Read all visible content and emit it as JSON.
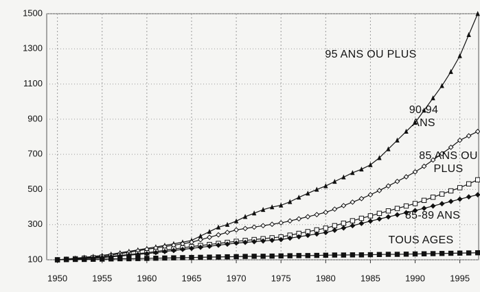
{
  "chart_data": {
    "type": "line",
    "x": [
      1950,
      1951,
      1952,
      1953,
      1954,
      1955,
      1956,
      1957,
      1958,
      1959,
      1960,
      1961,
      1962,
      1963,
      1964,
      1965,
      1966,
      1967,
      1968,
      1969,
      1970,
      1971,
      1972,
      1973,
      1974,
      1975,
      1976,
      1977,
      1978,
      1979,
      1980,
      1981,
      1982,
      1983,
      1984,
      1985,
      1986,
      1987,
      1988,
      1989,
      1990,
      1991,
      1992,
      1993,
      1994,
      1995,
      1996,
      1997
    ],
    "series": [
      {
        "name": "95 ANS OU PLUS",
        "color": "#111111",
        "marker": "triangle",
        "values": [
          100,
          104,
          109,
          114,
          119,
          125,
          132,
          140,
          148,
          156,
          165,
          173,
          182,
          191,
          200,
          210,
          235,
          260,
          285,
          300,
          320,
          345,
          365,
          385,
          400,
          410,
          430,
          455,
          478,
          500,
          520,
          545,
          570,
          595,
          615,
          640,
          680,
          730,
          780,
          830,
          880,
          950,
          1020,
          1090,
          1170,
          1260,
          1380,
          1500
        ]
      },
      {
        "name": "90-94 ANS",
        "color": "#111111",
        "marker": "open-diamond",
        "values": [
          100,
          103,
          107,
          111,
          115,
          120,
          127,
          135,
          143,
          151,
          160,
          167,
          175,
          183,
          191,
          200,
          214,
          228,
          242,
          256,
          270,
          278,
          286,
          294,
          302,
          310,
          321,
          333,
          345,
          357,
          370,
          388,
          408,
          428,
          448,
          470,
          494,
          520,
          546,
          572,
          600,
          632,
          668,
          704,
          740,
          780,
          805,
          830
        ]
      },
      {
        "name": "85 ANS OU PLUS",
        "color": "#111111",
        "marker": "open-square",
        "values": [
          100,
          103,
          106,
          109,
          112,
          115,
          120,
          125,
          130,
          135,
          140,
          147,
          154,
          161,
          168,
          175,
          181,
          187,
          193,
          199,
          205,
          210,
          215,
          220,
          225,
          230,
          240,
          250,
          260,
          270,
          280,
          294,
          308,
          322,
          336,
          350,
          364,
          378,
          392,
          406,
          420,
          438,
          456,
          474,
          492,
          510,
          532,
          555
        ]
      },
      {
        "name": "85-89 ANS",
        "color": "#111111",
        "marker": "diamond",
        "values": [
          100,
          102,
          104,
          107,
          109,
          112,
          117,
          121,
          126,
          130,
          135,
          141,
          147,
          153,
          159,
          165,
          171,
          177,
          183,
          189,
          195,
          199,
          203,
          207,
          211,
          215,
          223,
          231,
          239,
          247,
          255,
          268,
          281,
          294,
          307,
          320,
          332,
          344,
          356,
          368,
          380,
          393,
          406,
          419,
          432,
          445,
          458,
          470
        ]
      },
      {
        "name": "TOUS AGES",
        "color": "#111111",
        "marker": "square",
        "values": [
          100,
          101,
          102,
          102,
          103,
          104,
          105,
          106,
          106,
          107,
          108,
          109,
          110,
          111,
          112,
          113,
          114,
          115,
          116,
          117,
          118,
          119,
          120,
          120,
          121,
          122,
          123,
          124,
          124,
          125,
          126,
          127,
          127,
          128,
          128,
          129,
          130,
          131,
          131,
          132,
          133,
          134,
          135,
          136,
          137,
          138,
          139,
          140
        ]
      }
    ],
    "xlim": [
      1948.8,
      1997.1
    ],
    "xticks": [
      1950,
      1955,
      1960,
      1965,
      1970,
      1975,
      1980,
      1985,
      1990,
      1995
    ],
    "ylim": [
      100,
      1500
    ],
    "yticks": [
      100,
      300,
      500,
      700,
      900,
      1100,
      1300,
      1500
    ],
    "grid": true
  }
}
